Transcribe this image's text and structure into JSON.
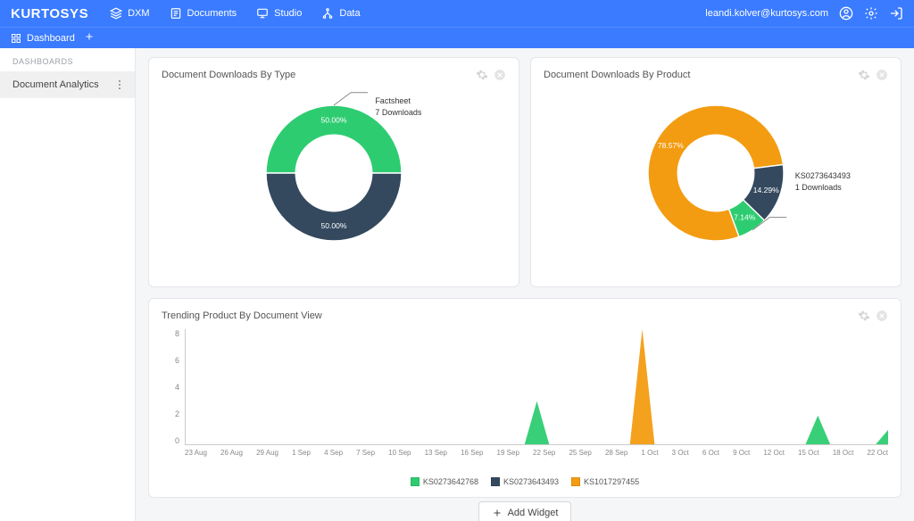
{
  "brand": "KURTOSYS",
  "topnav": {
    "items": [
      {
        "icon": "layers-icon",
        "label": "DXM"
      },
      {
        "icon": "file-icon",
        "label": "Documents"
      },
      {
        "icon": "monitor-icon",
        "label": "Studio"
      },
      {
        "icon": "tree-icon",
        "label": "Data"
      }
    ]
  },
  "user_email": "leandi.kolver@kurtosys.com",
  "subnav": {
    "dashboard_label": "Dashboard"
  },
  "sidebar": {
    "section": "DASHBOARDS",
    "active_item": "Document Analytics"
  },
  "colors": {
    "green": "#2ecc71",
    "dark": "#34495e",
    "orange": "#f39c12",
    "grid": "#e8e8e8",
    "text": "#555555"
  },
  "donut1": {
    "title": "Document Downloads By Type",
    "type": "donut",
    "slices": [
      {
        "label": "50.00%",
        "value": 50,
        "color": "#2ecc71"
      },
      {
        "label": "50.00%",
        "value": 50,
        "color": "#34495e"
      }
    ],
    "callout": {
      "line1": "Factsheet",
      "line2": "7 Downloads"
    }
  },
  "donut2": {
    "title": "Document Downloads By Product",
    "type": "donut",
    "slices": [
      {
        "label": "78.57%",
        "value": 78.57,
        "color": "#f39c12"
      },
      {
        "label": "14.29%",
        "value": 14.29,
        "color": "#34495e"
      },
      {
        "label": "7.14%",
        "value": 7.14,
        "color": "#2ecc71"
      }
    ],
    "callout": {
      "line1": "KS0273643493",
      "line2": "1 Downloads"
    }
  },
  "trend": {
    "title": "Trending Product By Document View",
    "type": "area",
    "ylim": [
      0,
      8
    ],
    "ytick_step": 2,
    "x_labels": [
      "23 Aug",
      "26 Aug",
      "29 Aug",
      "1 Sep",
      "4 Sep",
      "7 Sep",
      "10 Sep",
      "13 Sep",
      "16 Sep",
      "19 Sep",
      "22 Sep",
      "25 Sep",
      "28 Sep",
      "1 Oct",
      "3 Oct",
      "6 Oct",
      "9 Oct",
      "12 Oct",
      "15 Oct",
      "18 Oct",
      "22 Oct"
    ],
    "series": [
      {
        "name": "KS0273642768",
        "color": "#2ecc71",
        "peaks": [
          {
            "x": 10,
            "y": 3
          },
          {
            "x": 18,
            "y": 2
          },
          {
            "x": 20,
            "y": 1
          }
        ]
      },
      {
        "name": "KS0273643493",
        "color": "#34495e",
        "peaks": []
      },
      {
        "name": "KS1017297455",
        "color": "#f39c12",
        "peaks": [
          {
            "x": 13,
            "y": 8
          }
        ]
      }
    ],
    "legend": [
      "KS0273642768",
      "KS0273643493",
      "KS1017297455"
    ]
  },
  "add_widget_label": "Add Widget"
}
